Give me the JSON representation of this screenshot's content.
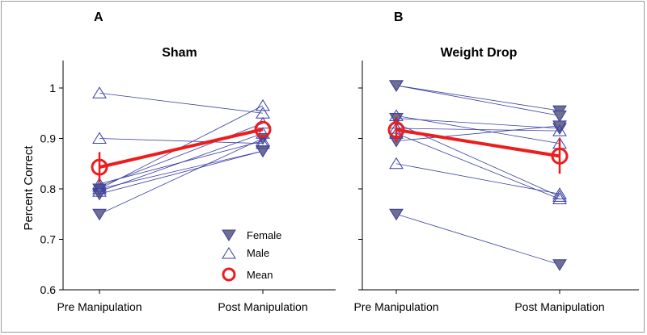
{
  "colors": {
    "line": "#3a3fa0",
    "female_fill": "#6f6f8f",
    "male_stroke": "#3a3fa0",
    "mean": "#ee1c1c",
    "axis": "#000000"
  },
  "chart_data": [
    {
      "type": "line",
      "panel_label": "A",
      "title": "Sham",
      "ylabel": "Percent Correct",
      "xlabel": "",
      "categories": [
        "Pre Manipulation",
        "Post Manipulation"
      ],
      "ylim": [
        0.6,
        1.0
      ],
      "yticks": [
        "0.6",
        "0.7",
        "0.8",
        "0.9",
        "1"
      ],
      "grid": false,
      "legend_position": "bottom-right",
      "series": [
        {
          "sex": "female",
          "values": [
            0.75,
            0.9
          ]
        },
        {
          "sex": "female",
          "values": [
            0.79,
            0.875
          ]
        },
        {
          "sex": "female",
          "values": [
            0.8,
            0.875
          ]
        },
        {
          "sex": "male",
          "values": [
            0.99,
            0.95
          ]
        },
        {
          "sex": "male",
          "values": [
            0.9,
            0.89
          ]
        },
        {
          "sex": "male",
          "values": [
            0.8,
            0.965
          ]
        },
        {
          "sex": "male",
          "values": [
            0.805,
            0.93
          ]
        },
        {
          "sex": "male",
          "values": [
            0.795,
            0.91
          ]
        },
        {
          "sex": "male",
          "values": [
            0.81,
            0.895
          ]
        }
      ],
      "mean": {
        "values": [
          0.843,
          0.918
        ],
        "err": [
          0.03,
          0.0
        ]
      }
    },
    {
      "type": "line",
      "panel_label": "B",
      "title": "Weight Drop",
      "ylabel": "",
      "xlabel": "",
      "categories": [
        "Pre Manipulation",
        "Post Manipulation"
      ],
      "ylim": [
        0.6,
        1.0
      ],
      "yticks": [
        "0.6",
        "0.7",
        "0.8",
        "0.9",
        "1"
      ],
      "grid": false,
      "series": [
        {
          "sex": "female",
          "values": [
            1.005,
            0.955
          ]
        },
        {
          "sex": "female",
          "values": [
            1.005,
            0.945
          ]
        },
        {
          "sex": "female",
          "values": [
            0.94,
            0.92
          ]
        },
        {
          "sex": "female",
          "values": [
            0.895,
            0.925
          ]
        },
        {
          "sex": "female",
          "values": [
            0.75,
            0.65
          ]
        },
        {
          "sex": "male",
          "values": [
            0.945,
            0.89
          ]
        },
        {
          "sex": "male",
          "values": [
            0.93,
            0.785
          ]
        },
        {
          "sex": "male",
          "values": [
            0.91,
            0.78
          ]
        },
        {
          "sex": "male",
          "values": [
            0.85,
            0.79
          ]
        },
        {
          "sex": "male",
          "values": [
            0.92,
            0.915
          ]
        }
      ],
      "mean": {
        "values": [
          0.917,
          0.865
        ],
        "err": [
          0.025,
          0.035
        ]
      }
    }
  ],
  "legend": {
    "female": "Female",
    "male": "Male",
    "mean": "Mean"
  }
}
